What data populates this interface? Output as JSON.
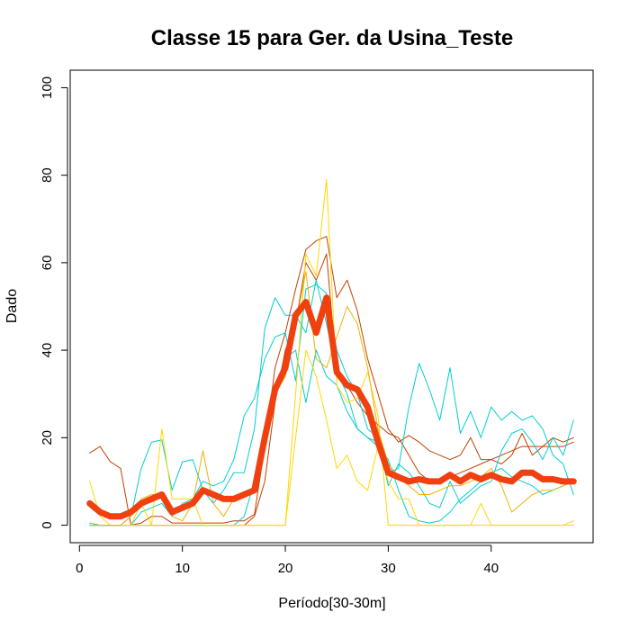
{
  "chart_data": {
    "type": "line",
    "title": "Classe  15 para Ger. da Usina_Teste",
    "xlabel": "Período[30-30m]",
    "ylabel": "Dado",
    "xlim": [
      -0.9,
      49.9
    ],
    "ylim": [
      -4,
      104
    ],
    "xticks": [
      0,
      10,
      20,
      30,
      40
    ],
    "yticks": [
      0,
      20,
      40,
      60,
      80,
      100
    ],
    "grid": false,
    "legend": "none",
    "series": [
      {
        "color": "#C04000",
        "width": 1,
        "x": [
          1,
          2,
          3,
          4,
          5,
          6,
          7,
          8,
          9,
          10,
          11,
          12,
          13,
          14,
          15,
          16,
          17,
          18,
          19,
          20,
          21,
          22,
          23,
          24,
          25,
          26,
          27,
          28,
          29,
          30,
          31,
          32,
          33,
          34,
          35,
          36,
          37,
          38,
          39,
          40,
          41,
          42,
          43,
          44,
          45,
          46,
          47,
          48
        ],
        "values": [
          16.5,
          18,
          14.5,
          13,
          0,
          0.5,
          2,
          2,
          0.5,
          0.5,
          0.5,
          0.5,
          0.5,
          0.5,
          1,
          1,
          2.5,
          18,
          36,
          44,
          54,
          63,
          65,
          66,
          52,
          56,
          49,
          38,
          30,
          22,
          19,
          20.5,
          19,
          17,
          16,
          15,
          16,
          20,
          15,
          15,
          14,
          16,
          21,
          16,
          18,
          20,
          19,
          20
        ]
      },
      {
        "color": "#C04000",
        "width": 1,
        "x": [
          1,
          2,
          3,
          4,
          5,
          6,
          7,
          8,
          9,
          10,
          11,
          12,
          13,
          14,
          15,
          16,
          17,
          18,
          19,
          20,
          21,
          22,
          23,
          24,
          25,
          26,
          27,
          28,
          29,
          30,
          31,
          32,
          33,
          34,
          35,
          36,
          37,
          38,
          39,
          40,
          41,
          42,
          43,
          44,
          45,
          46,
          47,
          48
        ],
        "values": [
          0,
          0,
          0,
          0,
          0,
          0,
          0,
          0,
          0,
          0,
          0,
          0,
          0,
          0,
          0,
          0,
          2,
          10,
          28,
          40,
          46,
          60,
          56,
          62,
          35,
          32,
          28,
          25,
          23,
          21,
          20,
          16,
          12,
          10,
          10,
          11,
          12,
          13,
          14,
          15,
          16,
          17,
          18,
          18,
          18,
          18,
          18,
          19
        ]
      },
      {
        "color": "#00CED1",
        "width": 1,
        "x": [
          1,
          2,
          3,
          4,
          5,
          6,
          7,
          8,
          9,
          10,
          11,
          12,
          13,
          14,
          15,
          16,
          17,
          18,
          19,
          20,
          21,
          22,
          23,
          24,
          25,
          26,
          27,
          28,
          29,
          30,
          31,
          32,
          33,
          34,
          35,
          36,
          37,
          38,
          39,
          40,
          41,
          42,
          43,
          44,
          45,
          46,
          47,
          48
        ],
        "values": [
          0.5,
          0,
          0,
          0,
          2,
          13,
          19,
          19.5,
          8,
          14.5,
          15,
          8,
          5,
          8,
          12,
          12,
          22,
          45,
          52,
          48,
          48,
          44,
          56,
          46,
          35,
          30,
          22,
          20,
          19,
          12,
          13,
          27,
          37,
          31,
          24,
          36,
          21,
          26,
          20,
          27,
          24,
          26,
          24,
          25,
          22,
          16,
          14,
          7
        ]
      },
      {
        "color": "#00CED1",
        "width": 1,
        "x": [
          1,
          2,
          3,
          4,
          5,
          6,
          7,
          8,
          9,
          10,
          11,
          12,
          13,
          14,
          15,
          16,
          17,
          18,
          19,
          20,
          21,
          22,
          23,
          24,
          25,
          26,
          27,
          28,
          29,
          30,
          31,
          32,
          33,
          34,
          35,
          36,
          37,
          38,
          39,
          40,
          41,
          42,
          43,
          44,
          45,
          46,
          47,
          48
        ],
        "values": [
          0,
          0,
          0,
          0,
          0,
          3,
          4,
          5,
          2,
          5,
          6,
          10,
          9,
          10,
          15,
          25,
          29,
          38,
          43,
          44,
          33,
          54,
          55,
          53,
          40,
          34,
          30,
          22,
          20,
          9,
          14,
          12,
          9,
          5,
          4,
          10,
          5,
          7,
          9,
          10,
          17,
          21,
          22,
          19,
          15,
          20,
          16,
          24
        ]
      },
      {
        "color": "#00CED1",
        "width": 1,
        "x": [
          1,
          2,
          3,
          4,
          5,
          6,
          7,
          8,
          9,
          10,
          11,
          12,
          13,
          14,
          15,
          16,
          17,
          18,
          19,
          20,
          21,
          22,
          23,
          24,
          25,
          26,
          27,
          28,
          29,
          30,
          31,
          32,
          33,
          34,
          35,
          36,
          37,
          38,
          39,
          40,
          41,
          42,
          43,
          44,
          45,
          46,
          47,
          48
        ],
        "values": [
          0,
          0,
          0,
          0,
          0,
          0,
          0,
          0,
          0,
          0,
          0,
          0,
          0,
          0,
          0,
          2,
          10,
          22,
          30,
          38,
          40,
          28,
          40,
          34,
          32,
          26,
          22,
          20,
          18,
          15,
          8,
          2,
          1,
          0.5,
          1,
          3,
          6,
          8,
          10,
          12,
          13,
          11,
          10,
          9,
          7,
          8,
          9,
          10
        ]
      },
      {
        "color": "#FFD700",
        "width": 1,
        "x": [
          1,
          2,
          3,
          4,
          5,
          6,
          7,
          8,
          9,
          10,
          11,
          12,
          13,
          14,
          15,
          16,
          17,
          18,
          19,
          20,
          21,
          22,
          23,
          24,
          25,
          26,
          27,
          28,
          29,
          30,
          31,
          32,
          33,
          34,
          35,
          36,
          37,
          38,
          39,
          40,
          41,
          42,
          43,
          44,
          45,
          46,
          47,
          48
        ],
        "values": [
          10,
          2,
          0,
          0,
          0,
          5,
          0,
          22,
          6,
          6,
          6,
          0,
          0,
          0,
          0,
          0,
          0,
          0,
          0,
          0,
          30,
          62,
          57,
          79,
          32,
          28,
          29,
          35,
          25,
          0,
          0,
          0,
          0,
          0,
          0,
          0,
          0,
          0,
          0,
          0,
          0,
          0,
          0,
          0,
          0,
          0,
          0,
          1
        ]
      },
      {
        "color": "#FFD700",
        "width": 1,
        "x": [
          1,
          2,
          3,
          4,
          5,
          6,
          7,
          8,
          9,
          10,
          11,
          12,
          13,
          14,
          15,
          16,
          17,
          18,
          19,
          20,
          21,
          22,
          23,
          24,
          25,
          26,
          27,
          28,
          29,
          30,
          31,
          32,
          33,
          34,
          35,
          36,
          37,
          38,
          39,
          40,
          41,
          42,
          43,
          44,
          45,
          46,
          47,
          48
        ],
        "values": [
          0,
          0,
          0,
          0,
          0,
          0,
          0,
          0,
          0,
          0,
          0,
          0,
          0,
          0,
          0,
          0,
          0,
          0,
          0,
          0,
          20,
          40,
          34,
          24,
          13,
          16,
          10,
          8,
          18,
          10,
          6,
          6,
          0,
          0,
          0,
          0,
          0,
          0,
          5,
          0,
          0,
          0,
          0,
          0,
          0,
          0,
          0,
          0
        ]
      },
      {
        "color": "#F0B000",
        "width": 1,
        "x": [
          1,
          2,
          3,
          4,
          5,
          6,
          7,
          8,
          9,
          10,
          11,
          12,
          13,
          14,
          15,
          16,
          17,
          18,
          19,
          20,
          21,
          22,
          23,
          24,
          25,
          26,
          27,
          28,
          29,
          30,
          31,
          32,
          33,
          34,
          35,
          36,
          37,
          38,
          39,
          40,
          41,
          42,
          43,
          44,
          45,
          46,
          47,
          48
        ],
        "values": [
          0,
          0,
          0,
          0,
          2,
          6,
          7,
          7,
          2,
          1,
          5,
          17,
          5,
          2,
          6,
          7,
          8,
          20,
          30,
          34,
          46,
          58,
          38,
          36,
          43,
          50,
          46,
          36,
          22,
          14,
          11,
          9,
          7,
          7,
          8,
          9,
          9,
          10,
          11,
          13,
          9,
          3,
          5,
          7,
          8,
          8,
          9,
          10
        ]
      },
      {
        "color": "#F04010",
        "width": 7,
        "x": [
          1,
          2,
          3,
          4,
          5,
          6,
          7,
          8,
          9,
          10,
          11,
          12,
          13,
          14,
          15,
          16,
          17,
          18,
          19,
          20,
          21,
          22,
          23,
          24,
          25,
          26,
          27,
          28,
          29,
          30,
          31,
          32,
          33,
          34,
          35,
          36,
          37,
          38,
          39,
          40,
          41,
          42,
          43,
          44,
          45,
          46,
          47,
          48
        ],
        "values": [
          5,
          3,
          2,
          2,
          3,
          5,
          6,
          7,
          3,
          4,
          5,
          8,
          7,
          6,
          6,
          7,
          8,
          20,
          31,
          36,
          48,
          51,
          44,
          52,
          35,
          32,
          31,
          27,
          19,
          12,
          11,
          10,
          10.5,
          10,
          10,
          11.5,
          10,
          11.5,
          10.5,
          11.5,
          10.5,
          10,
          12,
          12,
          10.5,
          10.5,
          10,
          10
        ]
      }
    ]
  }
}
